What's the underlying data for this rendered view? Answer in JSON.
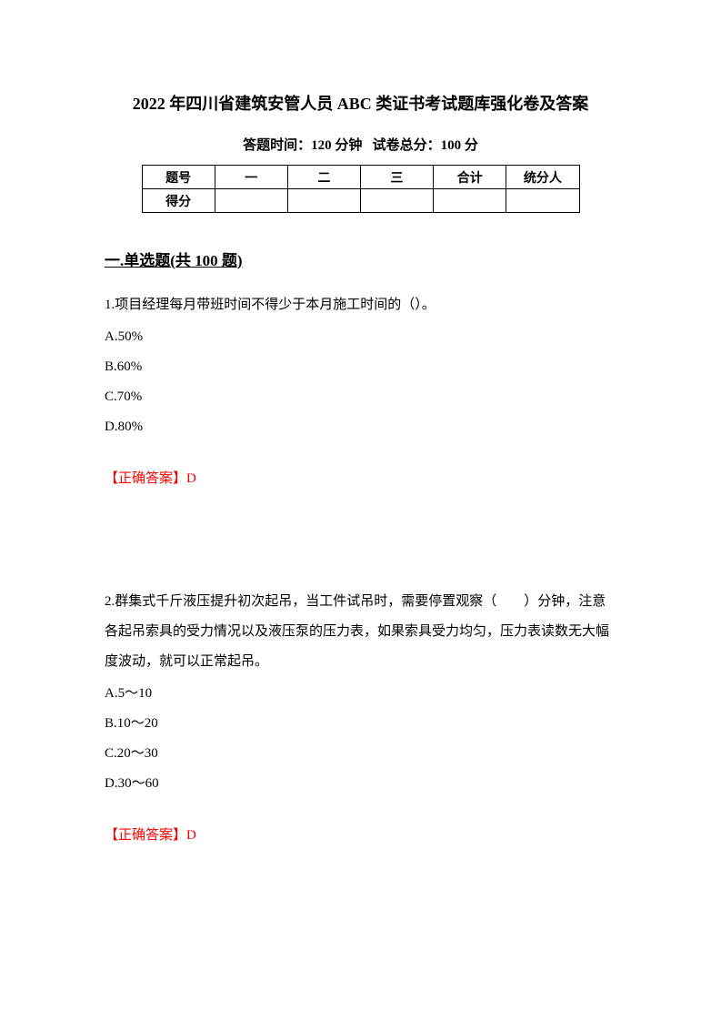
{
  "title": "2022 年四川省建筑安管人员 ABC 类证书考试题库强化卷及答案",
  "subtitle_time_label": "答题时间：",
  "subtitle_time_value": "120 分钟",
  "subtitle_score_label": "试卷总分：",
  "subtitle_score_value": "100 分",
  "table": {
    "row1": {
      "header": "题号",
      "c1": "一",
      "c2": "二",
      "c3": "三",
      "c4": "合计",
      "c5": "统分人"
    },
    "row2": {
      "header": "得分",
      "c1": "",
      "c2": "",
      "c3": "",
      "c4": "",
      "c5": ""
    }
  },
  "section_title": "一.单选题(共 100 题)",
  "q1": {
    "text": "1.项目经理每月带班时间不得少于本月施工时间的（）。",
    "a": "A.50%",
    "b": "B.60%",
    "c": "C.70%",
    "d": "D.80%",
    "answer": "【正确答案】D"
  },
  "q2": {
    "text": "2.群集式千斤液压提升初次起吊，当工件试吊时，需要停置观察（　　）分钟，注意各起吊索具的受力情况以及液压泵的压力表，如果索具受力均匀，压力表读数无大幅度波动，就可以正常起吊。",
    "a": "A.5～10",
    "b": "B.10～20",
    "c": "C.20～30",
    "d": "D.30～60",
    "answer": "【正确答案】D"
  }
}
